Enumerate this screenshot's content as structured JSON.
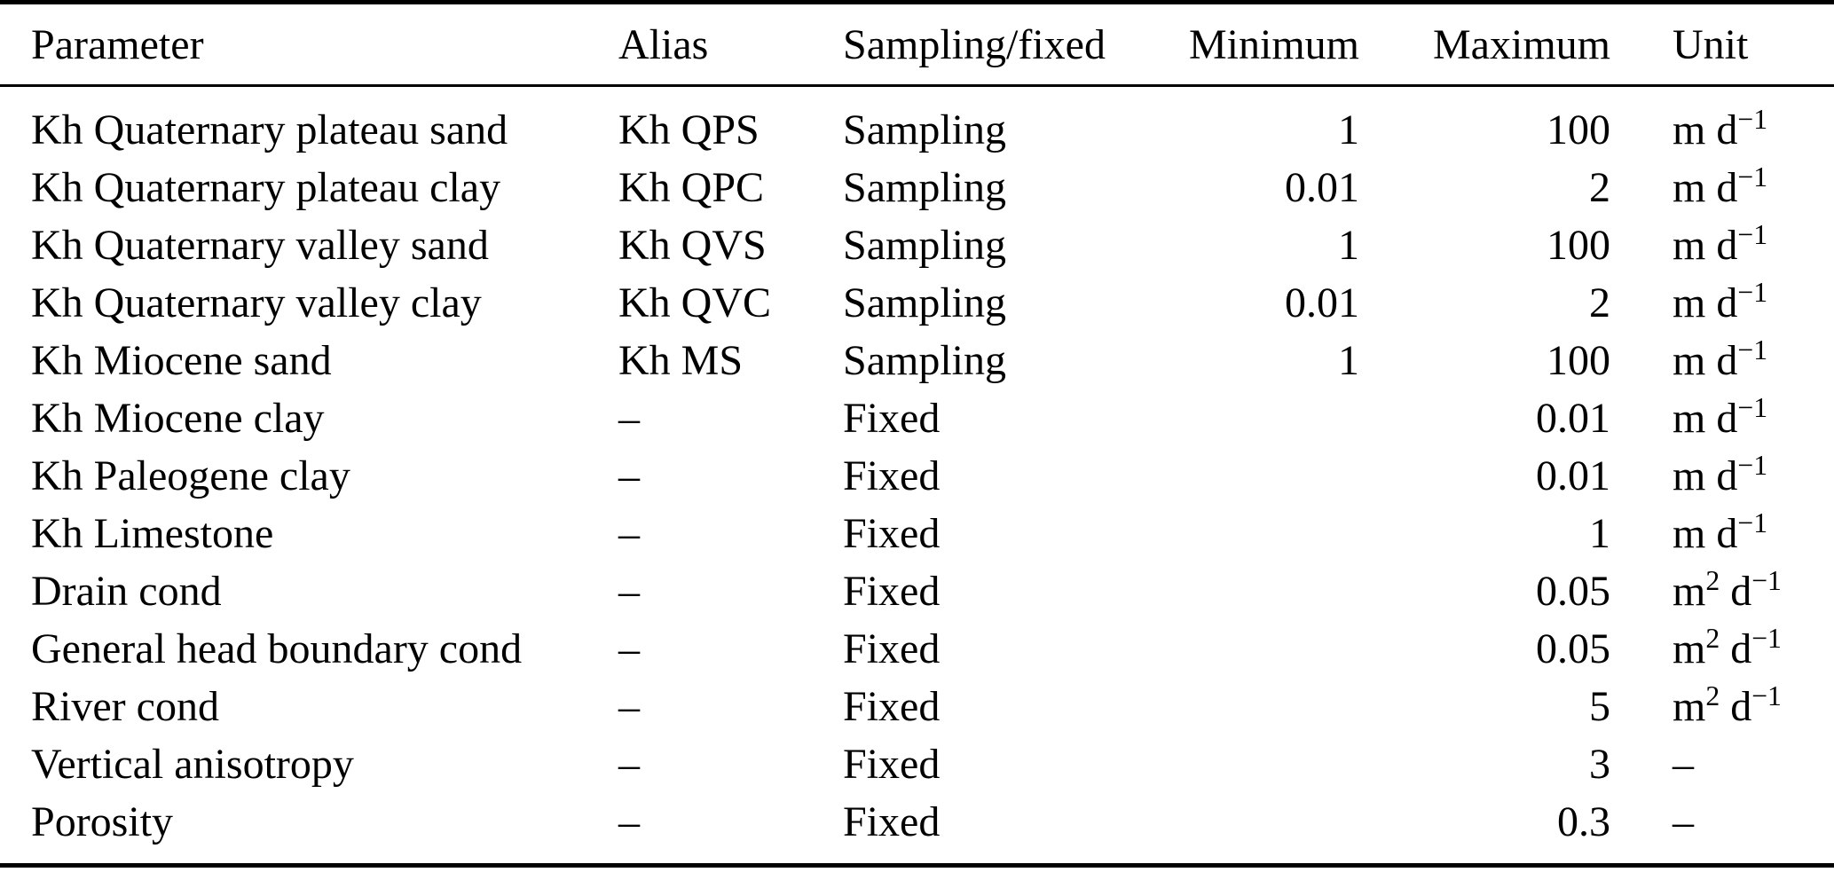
{
  "page": {
    "background_color": "#ffffff",
    "text_color": "#000000",
    "rule_color": "#000000"
  },
  "table": {
    "columns": [
      {
        "id": "parameter",
        "label": "Parameter",
        "align": "left"
      },
      {
        "id": "alias",
        "label": "Alias",
        "align": "left"
      },
      {
        "id": "sampling_fixed",
        "label": "Sampling/fixed",
        "align": "left"
      },
      {
        "id": "minimum",
        "label": "Minimum",
        "align": "right"
      },
      {
        "id": "maximum",
        "label": "Maximum",
        "align": "right"
      },
      {
        "id": "unit",
        "label": "Unit",
        "align": "left"
      }
    ],
    "rows": [
      {
        "parameter": "Kh Quaternary plateau sand",
        "alias": "Kh QPS",
        "sampling_fixed": "Sampling",
        "minimum": "1",
        "maximum": "100",
        "unit": [
          {
            "t": "m d"
          },
          {
            "t": "−1",
            "sup": true
          }
        ]
      },
      {
        "parameter": "Kh Quaternary plateau clay",
        "alias": "Kh QPC",
        "sampling_fixed": "Sampling",
        "minimum": "0.01",
        "maximum": "2",
        "unit": [
          {
            "t": "m d"
          },
          {
            "t": "−1",
            "sup": true
          }
        ]
      },
      {
        "parameter": "Kh Quaternary valley sand",
        "alias": "Kh QVS",
        "sampling_fixed": "Sampling",
        "minimum": "1",
        "maximum": "100",
        "unit": [
          {
            "t": "m d"
          },
          {
            "t": "−1",
            "sup": true
          }
        ]
      },
      {
        "parameter": "Kh Quaternary valley clay",
        "alias": "Kh QVC",
        "sampling_fixed": "Sampling",
        "minimum": "0.01",
        "maximum": "2",
        "unit": [
          {
            "t": "m d"
          },
          {
            "t": "−1",
            "sup": true
          }
        ]
      },
      {
        "parameter": "Kh Miocene sand",
        "alias": "Kh MS",
        "sampling_fixed": "Sampling",
        "minimum": "1",
        "maximum": "100",
        "unit": [
          {
            "t": "m d"
          },
          {
            "t": "−1",
            "sup": true
          }
        ]
      },
      {
        "parameter": "Kh Miocene clay",
        "alias": "–",
        "sampling_fixed": "Fixed",
        "minimum": "",
        "maximum": "0.01",
        "unit": [
          {
            "t": "m d"
          },
          {
            "t": "−1",
            "sup": true
          }
        ]
      },
      {
        "parameter": "Kh Paleogene clay",
        "alias": "–",
        "sampling_fixed": "Fixed",
        "minimum": "",
        "maximum": "0.01",
        "unit": [
          {
            "t": "m d"
          },
          {
            "t": "−1",
            "sup": true
          }
        ]
      },
      {
        "parameter": "Kh Limestone",
        "alias": "–",
        "sampling_fixed": "Fixed",
        "minimum": "",
        "maximum": "1",
        "unit": [
          {
            "t": "m d"
          },
          {
            "t": "−1",
            "sup": true
          }
        ]
      },
      {
        "parameter": "Drain cond",
        "alias": "–",
        "sampling_fixed": "Fixed",
        "minimum": "",
        "maximum": "0.05",
        "unit": [
          {
            "t": "m"
          },
          {
            "t": "2",
            "sup": true
          },
          {
            "t": " d"
          },
          {
            "t": "−1",
            "sup": true
          }
        ]
      },
      {
        "parameter": "General head boundary cond",
        "alias": "–",
        "sampling_fixed": "Fixed",
        "minimum": "",
        "maximum": "0.05",
        "unit": [
          {
            "t": "m"
          },
          {
            "t": "2",
            "sup": true
          },
          {
            "t": " d"
          },
          {
            "t": "−1",
            "sup": true
          }
        ]
      },
      {
        "parameter": "River cond",
        "alias": "–",
        "sampling_fixed": "Fixed",
        "minimum": "",
        "maximum": "5",
        "unit": [
          {
            "t": "m"
          },
          {
            "t": "2",
            "sup": true
          },
          {
            "t": " d"
          },
          {
            "t": "−1",
            "sup": true
          }
        ]
      },
      {
        "parameter": "Vertical anisotropy",
        "alias": "–",
        "sampling_fixed": "Fixed",
        "minimum": "",
        "maximum": "3",
        "unit": [
          {
            "t": "–"
          }
        ]
      },
      {
        "parameter": "Porosity",
        "alias": "–",
        "sampling_fixed": "Fixed",
        "minimum": "",
        "maximum": "0.3",
        "unit": [
          {
            "t": "–"
          }
        ]
      }
    ]
  }
}
